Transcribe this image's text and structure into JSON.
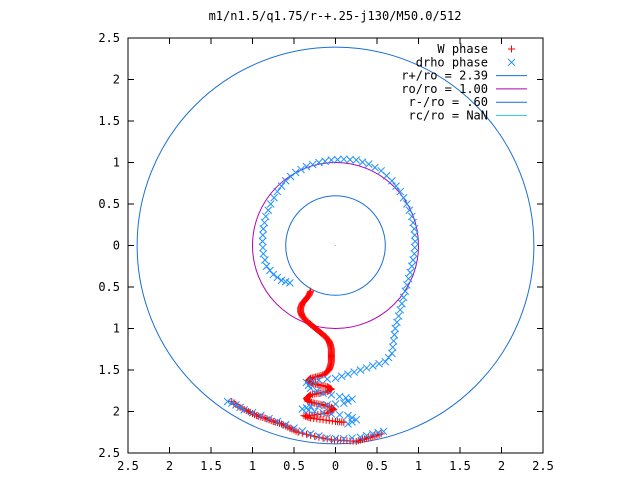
{
  "chart_data": {
    "type": "scatter",
    "title": "m1/n1.5/q1.75/r-+.25-j130/M50.0/512",
    "xlim": [
      -2.5,
      2.5
    ],
    "ylim": [
      -2.5,
      2.5
    ],
    "x_ticks": [
      "2.5",
      "2",
      "1.5",
      "1",
      "0.5",
      "0",
      "0.5",
      "1",
      "1.5",
      "2",
      "2.5"
    ],
    "y_ticks": [
      "2.5",
      "2",
      "1.5",
      "1",
      "0.5",
      "0",
      "0.5",
      "1",
      "1.5",
      "2",
      "2.5"
    ],
    "legend_position": "top-right",
    "grid": false,
    "series": [
      {
        "name": "W phase",
        "marker": "plus",
        "color": "#ff0000",
        "points": [
          [
            -0.3,
            -0.55
          ],
          [
            -0.32,
            -0.6
          ],
          [
            -0.36,
            -0.65
          ],
          [
            -0.4,
            -0.7
          ],
          [
            -0.42,
            -0.75
          ],
          [
            -0.42,
            -0.8
          ],
          [
            -0.4,
            -0.85
          ],
          [
            -0.36,
            -0.9
          ],
          [
            -0.3,
            -0.95
          ],
          [
            -0.24,
            -1.0
          ],
          [
            -0.18,
            -1.05
          ],
          [
            -0.12,
            -1.1
          ],
          [
            -0.08,
            -1.15
          ],
          [
            -0.06,
            -1.2
          ],
          [
            -0.05,
            -1.25
          ],
          [
            -0.05,
            -1.3
          ],
          [
            -0.05,
            -1.35
          ],
          [
            -0.05,
            -1.4
          ],
          [
            -0.06,
            -1.45
          ],
          [
            -0.08,
            -1.5
          ],
          [
            -0.13,
            -1.55
          ],
          [
            -0.22,
            -1.58
          ],
          [
            -0.3,
            -1.6
          ],
          [
            -0.33,
            -1.63
          ],
          [
            -0.28,
            -1.66
          ],
          [
            -0.2,
            -1.68
          ],
          [
            -0.1,
            -1.7
          ],
          [
            -0.05,
            -1.73
          ],
          [
            -0.1,
            -1.76
          ],
          [
            -0.2,
            -1.78
          ],
          [
            -0.3,
            -1.8
          ],
          [
            -0.35,
            -1.84
          ],
          [
            -0.33,
            -1.88
          ],
          [
            -0.25,
            -1.9
          ],
          [
            -0.15,
            -1.92
          ],
          [
            -0.05,
            -1.95
          ],
          [
            -0.02,
            -1.98
          ],
          [
            -0.1,
            -2.02
          ],
          [
            -0.25,
            -2.04
          ],
          [
            -0.38,
            -2.05
          ],
          [
            -0.3,
            -2.08
          ],
          [
            -0.15,
            -2.1
          ],
          [
            0.0,
            -2.12
          ],
          [
            0.1,
            -2.13
          ],
          [
            -1.25,
            -1.88
          ],
          [
            -1.15,
            -1.95
          ],
          [
            -1.05,
            -2.0
          ],
          [
            -0.95,
            -2.05
          ],
          [
            -0.85,
            -2.08
          ],
          [
            -0.75,
            -2.12
          ],
          [
            -0.65,
            -2.15
          ],
          [
            -0.55,
            -2.2
          ],
          [
            -0.45,
            -2.25
          ],
          [
            -0.25,
            -2.3
          ],
          [
            -0.05,
            -2.34
          ],
          [
            0.1,
            -2.35
          ],
          [
            0.25,
            -2.36
          ],
          [
            0.35,
            -2.33
          ],
          [
            0.45,
            -2.3
          ],
          [
            0.55,
            -2.27
          ]
        ]
      },
      {
        "name": "drho phase",
        "marker": "cross",
        "color": "#1e90ff",
        "points": [
          [
            -0.55,
            -0.45
          ],
          [
            -0.65,
            -0.42
          ],
          [
            -0.75,
            -0.35
          ],
          [
            -0.83,
            -0.25
          ],
          [
            -0.87,
            -0.1
          ],
          [
            -0.88,
            0.05
          ],
          [
            -0.87,
            0.2
          ],
          [
            -0.84,
            0.35
          ],
          [
            -0.78,
            0.5
          ],
          [
            -0.7,
            0.65
          ],
          [
            -0.6,
            0.78
          ],
          [
            -0.48,
            0.88
          ],
          [
            -0.35,
            0.95
          ],
          [
            -0.2,
            1.0
          ],
          [
            -0.05,
            1.03
          ],
          [
            0.1,
            1.04
          ],
          [
            0.25,
            1.03
          ],
          [
            0.4,
            0.98
          ],
          [
            0.55,
            0.9
          ],
          [
            0.68,
            0.78
          ],
          [
            0.78,
            0.65
          ],
          [
            0.86,
            0.5
          ],
          [
            0.92,
            0.35
          ],
          [
            0.95,
            0.2
          ],
          [
            0.96,
            0.05
          ],
          [
            0.95,
            -0.1
          ],
          [
            0.92,
            -0.25
          ],
          [
            0.88,
            -0.4
          ],
          [
            0.84,
            -0.55
          ],
          [
            0.8,
            -0.7
          ],
          [
            0.76,
            -0.85
          ],
          [
            0.72,
            -1.0
          ],
          [
            0.7,
            -1.15
          ],
          [
            0.68,
            -1.3
          ],
          [
            0.6,
            -1.4
          ],
          [
            0.45,
            -1.45
          ],
          [
            0.3,
            -1.5
          ],
          [
            0.15,
            -1.55
          ],
          [
            0.0,
            -1.6
          ],
          [
            -0.2,
            -1.62
          ],
          [
            -0.35,
            -1.65
          ],
          [
            -0.3,
            -1.72
          ],
          [
            -0.15,
            -1.78
          ],
          [
            0.05,
            -1.82
          ],
          [
            0.2,
            -1.85
          ],
          [
            0.1,
            -1.9
          ],
          [
            -0.1,
            -1.92
          ],
          [
            -0.3,
            -1.94
          ],
          [
            -0.4,
            -1.97
          ],
          [
            -0.25,
            -2.0
          ],
          [
            -0.05,
            -2.03
          ],
          [
            0.15,
            -2.05
          ],
          [
            0.25,
            -2.1
          ],
          [
            0.15,
            -2.15
          ],
          [
            -1.3,
            -1.88
          ],
          [
            -1.2,
            -1.92
          ],
          [
            -1.1,
            -1.98
          ],
          [
            -0.9,
            -2.05
          ],
          [
            -0.7,
            -2.12
          ],
          [
            -0.5,
            -2.2
          ],
          [
            -0.3,
            -2.27
          ],
          [
            -0.1,
            -2.32
          ],
          [
            0.1,
            -2.33
          ],
          [
            0.3,
            -2.31
          ],
          [
            0.45,
            -2.27
          ],
          [
            0.58,
            -2.24
          ]
        ]
      }
    ],
    "circles": [
      {
        "name": "r+/ro = 2.39",
        "radius": 2.39,
        "color": "#1a6fd6"
      },
      {
        "name": "ro/ro = 1.00",
        "radius": 1.0,
        "color": "#b000b0"
      },
      {
        "name": "r-/ro = .60",
        "radius": 0.6,
        "color": "#1a6fd6"
      },
      {
        "name": "rc/ro = NaN",
        "radius": null,
        "color": "#33ccee"
      }
    ]
  }
}
